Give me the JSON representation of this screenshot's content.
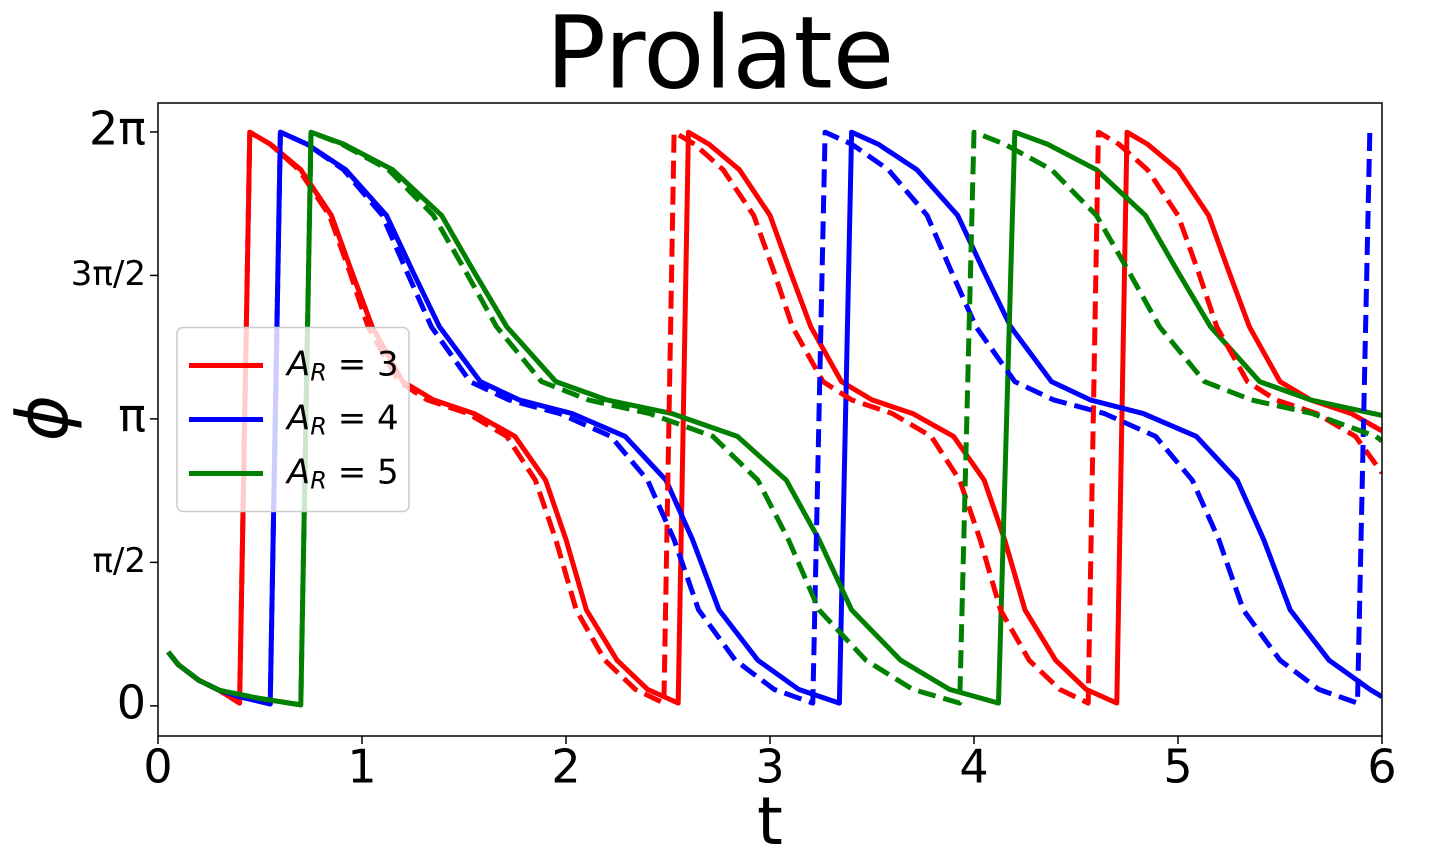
{
  "chart_data": {
    "type": "line",
    "title": "Prolate",
    "xlabel": "t",
    "ylabel": "ϕ",
    "xlim": [
      0,
      6
    ],
    "ylim": [
      -0.33,
      6.6
    ],
    "xticks": [
      0,
      1,
      2,
      3,
      4,
      5,
      6
    ],
    "yticks": [
      0,
      {
        "value": 1.5708,
        "label": "π/2"
      },
      {
        "value": 3.1416,
        "label": "π"
      },
      {
        "value": 4.7124,
        "label": "3π/2"
      },
      {
        "value": 6.2832,
        "label": "2π"
      }
    ],
    "legend": "center left",
    "series": [
      {
        "name": "A_R = 3",
        "color": "#ff0000",
        "dashed": false,
        "x": [
          0.05,
          0.1,
          0.2,
          0.3,
          0.4,
          0.45,
          0.55,
          0.7,
          0.85,
          0.95,
          1.05,
          1.2,
          1.35,
          1.55,
          1.75,
          1.9,
          2.0,
          2.1,
          2.25,
          2.4,
          2.55,
          2.6,
          2.7,
          2.85,
          3.0,
          3.1,
          3.2,
          3.35,
          3.5,
          3.7,
          3.9,
          4.05,
          4.15,
          4.25,
          4.4,
          4.55,
          4.7,
          4.75,
          4.85,
          5.0,
          5.15,
          5.25,
          5.35,
          5.5,
          5.65,
          5.85,
          6.0
        ],
        "values": [
          0.59,
          0.45,
          0.28,
          0.17,
          0.03,
          6.28,
          6.15,
          5.87,
          5.37,
          4.75,
          4.15,
          3.55,
          3.35,
          3.2,
          2.95,
          2.47,
          1.82,
          1.05,
          0.5,
          0.18,
          0.03,
          6.28,
          6.15,
          5.87,
          5.37,
          4.75,
          4.15,
          3.55,
          3.35,
          3.2,
          2.95,
          2.47,
          1.82,
          1.05,
          0.5,
          0.18,
          0.03,
          6.28,
          6.15,
          5.87,
          5.37,
          4.75,
          4.15,
          3.55,
          3.35,
          3.2,
          3.01
        ]
      },
      {
        "name": "A_R = 4",
        "color": "#0000ff",
        "dashed": false,
        "x": [
          0.05,
          0.1,
          0.2,
          0.3,
          0.4,
          0.55,
          0.6,
          0.73,
          0.92,
          1.12,
          1.25,
          1.38,
          1.58,
          1.77,
          2.03,
          2.29,
          2.49,
          2.62,
          2.75,
          2.94,
          3.14,
          3.34,
          3.4,
          3.53,
          3.72,
          3.92,
          4.05,
          4.18,
          4.38,
          4.57,
          4.83,
          5.09,
          5.29,
          5.42,
          5.55,
          5.74,
          5.94,
          6.0
        ],
        "values": [
          0.59,
          0.45,
          0.28,
          0.17,
          0.1,
          0.02,
          6.28,
          6.15,
          5.87,
          5.37,
          4.75,
          4.15,
          3.55,
          3.35,
          3.2,
          2.95,
          2.47,
          1.82,
          1.05,
          0.5,
          0.18,
          0.03,
          6.28,
          6.15,
          5.87,
          5.37,
          4.75,
          4.15,
          3.55,
          3.35,
          3.2,
          2.95,
          2.47,
          1.82,
          1.05,
          0.5,
          0.18,
          0.1
        ]
      },
      {
        "name": "A_R = 5",
        "color": "#008000",
        "dashed": false,
        "x": [
          0.05,
          0.1,
          0.2,
          0.3,
          0.5,
          0.7,
          0.75,
          0.91,
          1.15,
          1.39,
          1.55,
          1.71,
          1.95,
          2.2,
          2.52,
          2.84,
          3.08,
          3.24,
          3.4,
          3.64,
          3.88,
          4.12,
          4.2,
          4.36,
          4.6,
          4.84,
          5.0,
          5.16,
          5.4,
          5.65,
          6.0
        ],
        "values": [
          0.59,
          0.45,
          0.28,
          0.17,
          0.08,
          0.01,
          6.28,
          6.15,
          5.87,
          5.37,
          4.75,
          4.15,
          3.55,
          3.35,
          3.2,
          2.95,
          2.47,
          1.82,
          1.05,
          0.5,
          0.18,
          0.03,
          6.28,
          6.15,
          5.87,
          5.37,
          4.75,
          4.15,
          3.55,
          3.35,
          3.18
        ]
      },
      {
        "color": "#ff0000",
        "dashed": true,
        "x": [
          0.05,
          0.1,
          0.2,
          0.3,
          0.4,
          0.45,
          0.55,
          0.69,
          0.84,
          0.94,
          1.03,
          1.18,
          1.32,
          1.52,
          1.71,
          1.85,
          1.95,
          2.05,
          2.19,
          2.34,
          2.48,
          2.53,
          2.63,
          2.77,
          2.92,
          3.02,
          3.11,
          3.26,
          3.4,
          3.6,
          3.79,
          3.93,
          4.03,
          4.13,
          4.27,
          4.42,
          4.56,
          4.61,
          4.71,
          4.85,
          5.0,
          5.1,
          5.19,
          5.34,
          5.48,
          5.68,
          5.87,
          6.0
        ],
        "values": [
          0.59,
          0.45,
          0.28,
          0.17,
          0.03,
          6.28,
          6.15,
          5.87,
          5.37,
          4.75,
          4.15,
          3.55,
          3.35,
          3.2,
          2.95,
          2.47,
          1.82,
          1.05,
          0.5,
          0.18,
          0.03,
          6.28,
          6.15,
          5.87,
          5.37,
          4.75,
          4.15,
          3.55,
          3.35,
          3.2,
          2.95,
          2.47,
          1.82,
          1.05,
          0.5,
          0.18,
          0.03,
          6.28,
          6.15,
          5.87,
          5.37,
          4.75,
          4.15,
          3.55,
          3.35,
          3.2,
          2.95,
          2.55
        ]
      },
      {
        "color": "#0000ff",
        "dashed": true,
        "x": [
          0.05,
          0.1,
          0.2,
          0.3,
          0.4,
          0.55,
          0.6,
          0.73,
          0.91,
          1.1,
          1.22,
          1.34,
          1.53,
          1.72,
          1.97,
          2.22,
          2.4,
          2.53,
          2.65,
          2.83,
          3.02,
          3.21,
          3.27,
          3.4,
          3.58,
          3.77,
          3.89,
          4.01,
          4.2,
          4.39,
          4.64,
          4.89,
          5.07,
          5.2,
          5.32,
          5.5,
          5.69,
          5.88,
          5.94
        ],
        "values": [
          0.59,
          0.45,
          0.28,
          0.17,
          0.1,
          0.02,
          6.28,
          6.15,
          5.87,
          5.37,
          4.75,
          4.15,
          3.55,
          3.35,
          3.2,
          2.95,
          2.47,
          1.82,
          1.05,
          0.5,
          0.18,
          0.03,
          6.28,
          6.15,
          5.87,
          5.37,
          4.75,
          4.15,
          3.55,
          3.35,
          3.2,
          2.95,
          2.47,
          1.82,
          1.05,
          0.5,
          0.18,
          0.03,
          6.28
        ]
      },
      {
        "color": "#008000",
        "dashed": true,
        "x": [
          0.05,
          0.1,
          0.2,
          0.3,
          0.5,
          0.7,
          0.75,
          0.9,
          1.13,
          1.35,
          1.51,
          1.66,
          1.88,
          2.11,
          2.41,
          2.72,
          2.94,
          3.09,
          3.24,
          3.47,
          3.7,
          3.93,
          4.0,
          4.15,
          4.38,
          4.6,
          4.76,
          4.91,
          5.13,
          5.36,
          5.66,
          5.97,
          6.0
        ],
        "values": [
          0.59,
          0.45,
          0.28,
          0.17,
          0.08,
          0.01,
          6.28,
          6.15,
          5.87,
          5.37,
          4.75,
          4.15,
          3.55,
          3.35,
          3.2,
          2.95,
          2.47,
          1.82,
          1.05,
          0.5,
          0.18,
          0.03,
          6.28,
          6.15,
          5.87,
          5.37,
          4.75,
          4.15,
          3.55,
          3.35,
          3.2,
          2.95,
          2.9
        ]
      }
    ]
  }
}
